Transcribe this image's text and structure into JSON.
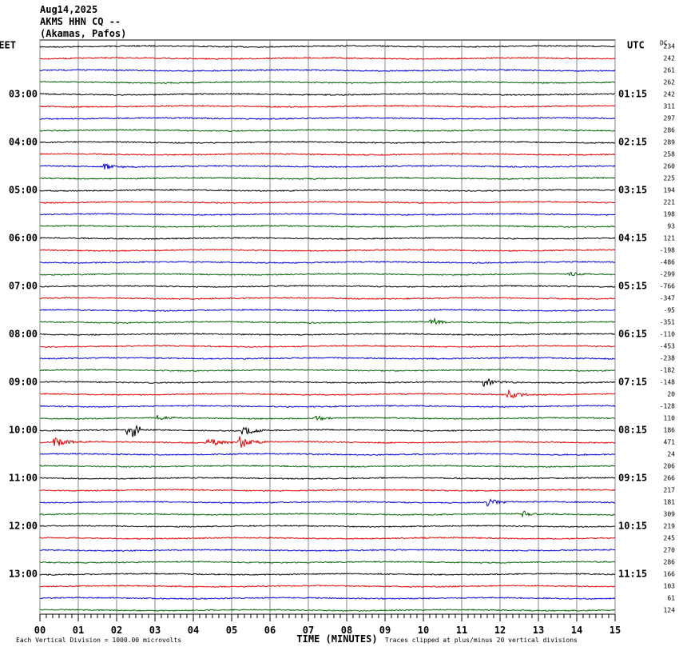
{
  "header": {
    "date": "Aug14,2025",
    "station": "AKMS HHN CQ --",
    "location": "(Akamas, Pafos)"
  },
  "left_header": "EET",
  "right_header": "UTC",
  "dc_header": "DC",
  "hours": [
    {
      "eet": "03:00",
      "utc": "01:15"
    },
    {
      "eet": "04:00",
      "utc": "02:15"
    },
    {
      "eet": "05:00",
      "utc": "03:15"
    },
    {
      "eet": "06:00",
      "utc": "04:15"
    },
    {
      "eet": "07:00",
      "utc": "05:15"
    },
    {
      "eet": "08:00",
      "utc": "06:15"
    },
    {
      "eet": "09:00",
      "utc": "07:15"
    },
    {
      "eet": "10:00",
      "utc": "08:15"
    },
    {
      "eet": "11:00",
      "utc": "09:15"
    },
    {
      "eet": "12:00",
      "utc": "10:15"
    },
    {
      "eet": "13:00",
      "utc": "11:15"
    }
  ],
  "dc_values": [
    234,
    242,
    261,
    262,
    242,
    311,
    297,
    286,
    289,
    258,
    260,
    225,
    194,
    221,
    198,
    93,
    121,
    -198,
    -486,
    -299,
    -766,
    -347,
    -95,
    -351,
    -110,
    -453,
    -238,
    -182,
    -148,
    20,
    -128,
    110,
    186,
    471,
    24,
    206,
    266,
    217,
    181,
    309,
    219,
    245,
    270,
    286,
    166,
    103,
    61,
    124
  ],
  "x_labels": [
    "00",
    "01",
    "02",
    "03",
    "04",
    "05",
    "06",
    "07",
    "08",
    "09",
    "10",
    "11",
    "12",
    "13",
    "14",
    "15"
  ],
  "x_axis_title": "TIME (MINUTES)",
  "footer_left": "Each Vertical Division = 1000.00 microvolts",
  "footer_right": "Traces clipped at plus/minus 20 vertical divisions"
}
